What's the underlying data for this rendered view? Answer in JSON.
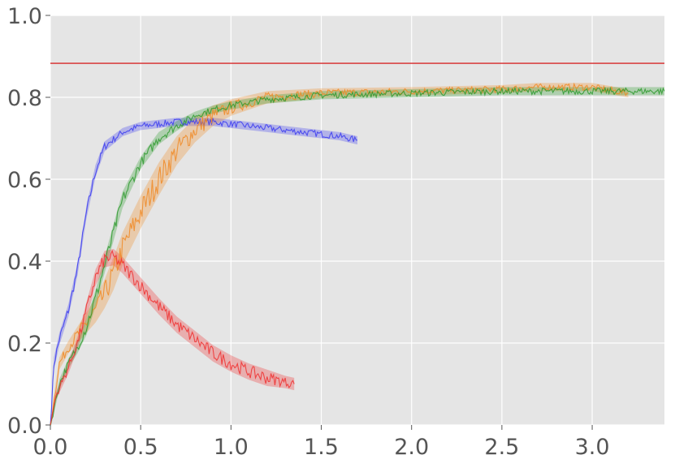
{
  "chart_data": {
    "type": "line",
    "title": "",
    "xlabel": "",
    "ylabel": "",
    "xlim": [
      0,
      3.4
    ],
    "ylim": [
      0,
      1.0
    ],
    "xticks": [
      "0.0",
      "0.5",
      "1.0",
      "1.5",
      "2.0",
      "2.5",
      "3.0"
    ],
    "yticks": [
      "0.0",
      "0.2",
      "0.4",
      "0.6",
      "0.8",
      "1.0"
    ],
    "grid": true,
    "background": "#e5e5e5",
    "reference_line": {
      "y": 0.883,
      "color": "#d62728"
    },
    "series": [
      {
        "color": "#3b3bf0",
        "x": [
          0.0,
          0.02,
          0.05,
          0.1,
          0.15,
          0.2,
          0.25,
          0.3,
          0.4,
          0.5,
          0.6,
          0.7,
          0.8,
          0.9,
          1.0,
          1.1,
          1.2,
          1.3,
          1.4,
          1.5,
          1.6,
          1.7
        ],
        "y": [
          0.0,
          0.15,
          0.21,
          0.28,
          0.38,
          0.52,
          0.62,
          0.68,
          0.715,
          0.73,
          0.735,
          0.74,
          0.74,
          0.74,
          0.735,
          0.73,
          0.725,
          0.72,
          0.715,
          0.71,
          0.705,
          0.695
        ],
        "band": [
          0.01,
          0.015,
          0.015,
          0.015,
          0.015,
          0.015,
          0.015,
          0.012,
          0.01,
          0.01,
          0.01,
          0.01,
          0.01,
          0.01,
          0.01,
          0.01,
          0.01,
          0.01,
          0.01,
          0.01,
          0.01,
          0.01
        ]
      },
      {
        "color": "#f08a24",
        "x": [
          0.0,
          0.05,
          0.1,
          0.15,
          0.2,
          0.25,
          0.3,
          0.35,
          0.4,
          0.5,
          0.6,
          0.7,
          0.8,
          0.9,
          1.0,
          1.2,
          1.5,
          2.0,
          2.5,
          2.7,
          3.0,
          3.2
        ],
        "y": [
          0.0,
          0.15,
          0.19,
          0.22,
          0.25,
          0.28,
          0.32,
          0.37,
          0.43,
          0.52,
          0.6,
          0.67,
          0.72,
          0.755,
          0.775,
          0.8,
          0.81,
          0.815,
          0.82,
          0.825,
          0.825,
          0.81
        ],
        "band": [
          0.01,
          0.015,
          0.015,
          0.02,
          0.025,
          0.03,
          0.035,
          0.04,
          0.04,
          0.04,
          0.04,
          0.035,
          0.03,
          0.025,
          0.02,
          0.015,
          0.012,
          0.01,
          0.01,
          0.01,
          0.01,
          0.01
        ]
      },
      {
        "color": "#2e9a2e",
        "x": [
          0.0,
          0.05,
          0.1,
          0.15,
          0.2,
          0.25,
          0.3,
          0.35,
          0.4,
          0.5,
          0.6,
          0.7,
          0.8,
          0.9,
          1.0,
          1.2,
          1.5,
          2.0,
          2.5,
          3.0,
          3.4
        ],
        "y": [
          0.0,
          0.1,
          0.15,
          0.19,
          0.24,
          0.31,
          0.39,
          0.47,
          0.55,
          0.64,
          0.7,
          0.73,
          0.755,
          0.77,
          0.78,
          0.795,
          0.805,
          0.81,
          0.815,
          0.815,
          0.815
        ],
        "band": [
          0.01,
          0.012,
          0.012,
          0.015,
          0.02,
          0.02,
          0.02,
          0.02,
          0.02,
          0.015,
          0.015,
          0.012,
          0.01,
          0.01,
          0.01,
          0.01,
          0.01,
          0.01,
          0.01,
          0.01,
          0.01
        ]
      },
      {
        "color": "#f03030",
        "x": [
          0.0,
          0.03,
          0.06,
          0.1,
          0.15,
          0.2,
          0.25,
          0.3,
          0.35,
          0.4,
          0.5,
          0.6,
          0.7,
          0.8,
          0.9,
          1.0,
          1.1,
          1.2,
          1.3,
          1.35
        ],
        "y": [
          0.0,
          0.07,
          0.1,
          0.14,
          0.2,
          0.28,
          0.36,
          0.405,
          0.41,
          0.39,
          0.34,
          0.29,
          0.245,
          0.21,
          0.175,
          0.15,
          0.13,
          0.115,
          0.105,
          0.1
        ],
        "band": [
          0.005,
          0.01,
          0.012,
          0.015,
          0.015,
          0.02,
          0.02,
          0.02,
          0.02,
          0.02,
          0.02,
          0.02,
          0.02,
          0.02,
          0.02,
          0.02,
          0.02,
          0.02,
          0.015,
          0.015
        ]
      }
    ]
  }
}
